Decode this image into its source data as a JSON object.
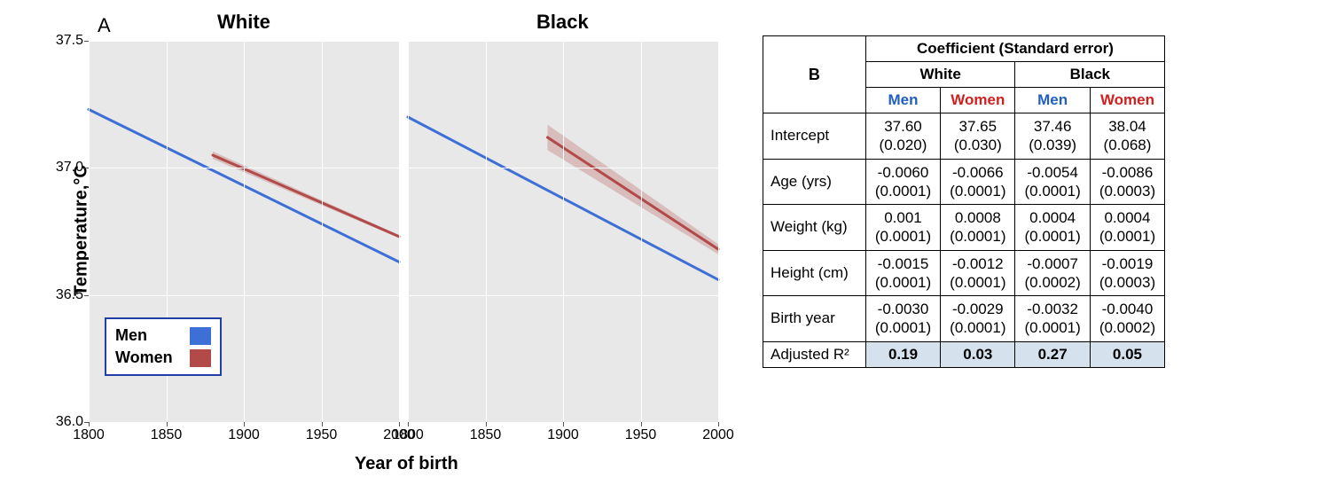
{
  "panelA": {
    "label": "A",
    "y_axis_title": "Temperature,°C",
    "x_axis_title": "Year of birth",
    "ylim": [
      36.0,
      37.5
    ],
    "xlim": [
      1800,
      2000
    ],
    "y_ticks": [
      36.0,
      36.5,
      37.0,
      37.5
    ],
    "x_ticks": [
      1800,
      1850,
      1900,
      1950,
      2000
    ],
    "plot_bg": "#e8e8e8",
    "grid_color": "#ffffff",
    "facets": [
      {
        "title": "White",
        "series": [
          {
            "kind": "men",
            "x1": 1800,
            "y1": 37.23,
            "x2": 2000,
            "y2": 36.63,
            "ribbon_dy": 0.0
          },
          {
            "kind": "women",
            "x1": 1880,
            "y1": 37.05,
            "x2": 2000,
            "y2": 36.73,
            "ribbon_dy": 0.015
          }
        ]
      },
      {
        "title": "Black",
        "series": [
          {
            "kind": "men",
            "x1": 1800,
            "y1": 37.2,
            "x2": 2000,
            "y2": 36.56,
            "ribbon_dy": 0.0
          },
          {
            "kind": "women",
            "x1": 1890,
            "y1": 37.12,
            "x2": 2000,
            "y2": 36.68,
            "ribbon_dy": 0.05
          }
        ]
      }
    ],
    "colors": {
      "men": "#3d6fd6",
      "women": "#b24a4a",
      "women_ribbon": "rgba(178,74,74,0.28)"
    },
    "line_width": 3,
    "legend": {
      "border_color": "#1f3ea8",
      "items": [
        {
          "label": "Men",
          "color_key": "men"
        },
        {
          "label": "Women",
          "color_key": "women"
        }
      ]
    }
  },
  "panelB": {
    "label": "B",
    "header_title": "Coefficient (Standard error)",
    "groups": [
      "White",
      "Black"
    ],
    "subheaders": [
      "Men",
      "Women",
      "Men",
      "Women"
    ],
    "rows": [
      {
        "label": "Intercept",
        "cells": [
          [
            "37.60",
            "(0.020)"
          ],
          [
            "37.65",
            "(0.030)"
          ],
          [
            "37.46",
            "(0.039)"
          ],
          [
            "38.04",
            "(0.068)"
          ]
        ]
      },
      {
        "label": "Age (yrs)",
        "cells": [
          [
            "-0.0060",
            "(0.0001)"
          ],
          [
            "-0.0066",
            "(0.0001)"
          ],
          [
            "-0.0054",
            "(0.0001)"
          ],
          [
            "-0.0086",
            "(0.0003)"
          ]
        ]
      },
      {
        "label": "Weight (kg)",
        "cells": [
          [
            "0.001",
            "(0.0001)"
          ],
          [
            "0.0008",
            "(0.0001)"
          ],
          [
            "0.0004",
            "(0.0001)"
          ],
          [
            "0.0004",
            "(0.0001)"
          ]
        ]
      },
      {
        "label": "Height (cm)",
        "cells": [
          [
            "-0.0015",
            "(0.0001)"
          ],
          [
            "-0.0012",
            "(0.0001)"
          ],
          [
            "-0.0007",
            "(0.0002)"
          ],
          [
            "-0.0019",
            "(0.0003)"
          ]
        ]
      },
      {
        "label": "Birth year",
        "cells": [
          [
            "-0.0030",
            "(0.0001)"
          ],
          [
            "-0.0029",
            "(0.0001)"
          ],
          [
            "-0.0032",
            "(0.0001)"
          ],
          [
            "-0.0040",
            "(0.0002)"
          ]
        ]
      }
    ],
    "r2": {
      "label": "Adjusted R²",
      "values": [
        "0.19",
        "0.03",
        "0.27",
        "0.05"
      ]
    },
    "highlight_bg": "#d6e1ee"
  }
}
